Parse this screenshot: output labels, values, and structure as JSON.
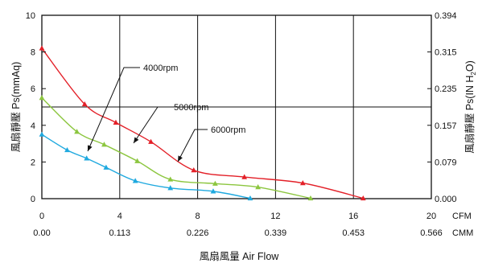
{
  "chart_data": {
    "type": "line",
    "left_axis": {
      "label": "風扇靜壓 Ps(mmAq)",
      "range": [
        0,
        10
      ],
      "ticks": [
        "0",
        "2",
        "4",
        "6",
        "8",
        "10"
      ]
    },
    "right_axis": {
      "label_main": "風扇靜壓 Ps(IN H",
      "label_sub": "2",
      "label_end": "O)",
      "ticks": [
        "0.000",
        "0.079",
        "0.157",
        "0.235",
        "0.315",
        "0.394"
      ]
    },
    "x_axis": {
      "label": "風扇風量 Air Flow",
      "range": [
        0,
        20
      ],
      "cfm_unit": "CFM",
      "cfm_ticks": [
        "0",
        "4",
        "8",
        "12",
        "16",
        "20"
      ],
      "cmm_unit": "CMM",
      "cmm_ticks": [
        "0.00",
        "0.113",
        "0.226",
        "0.339",
        "0.453",
        "0.566"
      ]
    },
    "grid": true,
    "series": [
      {
        "name": "4000rpm",
        "color": "#1fa9df",
        "x": [
          0,
          1.3,
          2.3,
          3.3,
          4.8,
          6.6,
          8.8,
          10.7
        ],
        "y": [
          3.5,
          2.65,
          2.2,
          1.7,
          0.97,
          0.58,
          0.4,
          0.02
        ]
      },
      {
        "name": "5000rpm",
        "color": "#8cc63f",
        "x": [
          0,
          1.8,
          3.2,
          4.9,
          6.6,
          8.9,
          11.1,
          13.8
        ],
        "y": [
          5.5,
          3.65,
          2.95,
          2.05,
          1.05,
          0.82,
          0.63,
          0.02
        ]
      },
      {
        "name": "6000rpm",
        "color": "#e32028",
        "x": [
          0,
          2.2,
          3.8,
          5.6,
          7.8,
          10.4,
          13.4,
          16.5
        ],
        "y": [
          8.2,
          5.15,
          4.15,
          3.1,
          1.55,
          1.18,
          0.85,
          0.02
        ]
      }
    ]
  }
}
